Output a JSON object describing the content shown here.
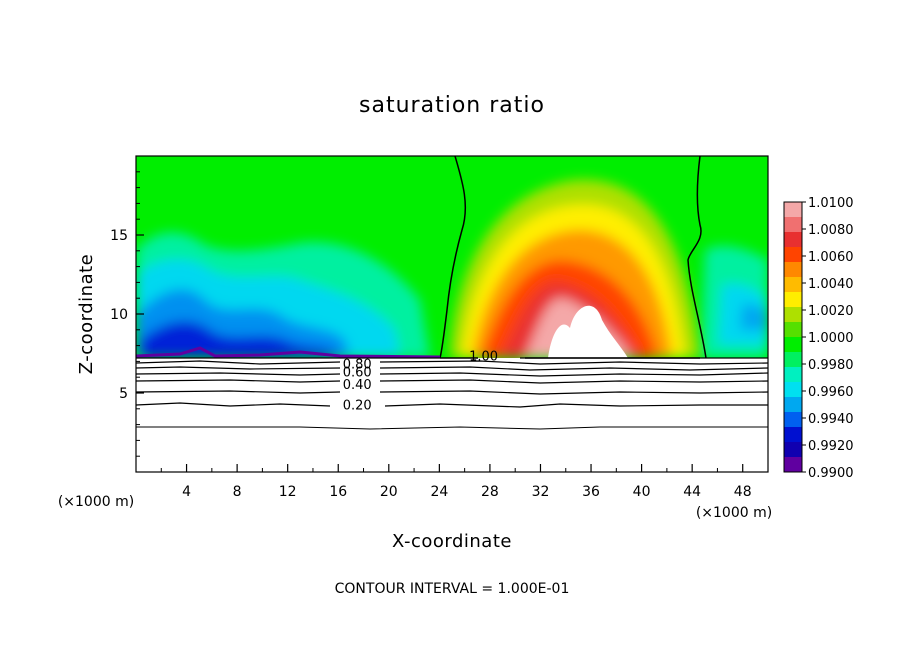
{
  "chart_data": {
    "type": "heatmap",
    "title": "saturation ratio",
    "xlabel": "X-coordinate",
    "ylabel": "Z-coordinate",
    "x_unit": "(×1000 m)",
    "x_unit_right": "(×1000 m)",
    "xlim": [
      0,
      50
    ],
    "ylim": [
      0,
      20
    ],
    "x_ticks": [
      4,
      8,
      12,
      16,
      20,
      24,
      28,
      32,
      36,
      40,
      44,
      48
    ],
    "y_ticks": [
      5,
      10,
      15
    ],
    "footer": "CONTOUR INTERVAL = 1.000E-01",
    "colorbar": {
      "min": 0.99,
      "max": 1.01,
      "labels": [
        "1.0100",
        "1.0080",
        "1.0060",
        "1.0040",
        "1.0020",
        "1.0000",
        "0.9980",
        "0.9960",
        "0.9940",
        "0.9920",
        "0.9900"
      ],
      "colors": [
        "#f4a8a8",
        "#f07070",
        "#e83030",
        "#ff4400",
        "#ff8800",
        "#ffbb00",
        "#ffee00",
        "#aee000",
        "#55e000",
        "#00ee00",
        "#00f060",
        "#00f0c0",
        "#00e0f0",
        "#00a8f0",
        "#0060f0",
        "#0010d0",
        "#1000b0",
        "#6000a0"
      ]
    },
    "contours": [
      {
        "label": "1.00",
        "x": 27.5,
        "z": 7.3
      },
      {
        "label": "0.80",
        "x": 17.5,
        "z": 6.8
      },
      {
        "label": "0.60",
        "x": 17.5,
        "z": 6.3
      },
      {
        "label": "0.40",
        "x": 17.5,
        "z": 5.5
      },
      {
        "label": "0.20",
        "x": 17.5,
        "z": 4.2
      }
    ],
    "cloud_base_z": 7.3,
    "grid": false
  }
}
